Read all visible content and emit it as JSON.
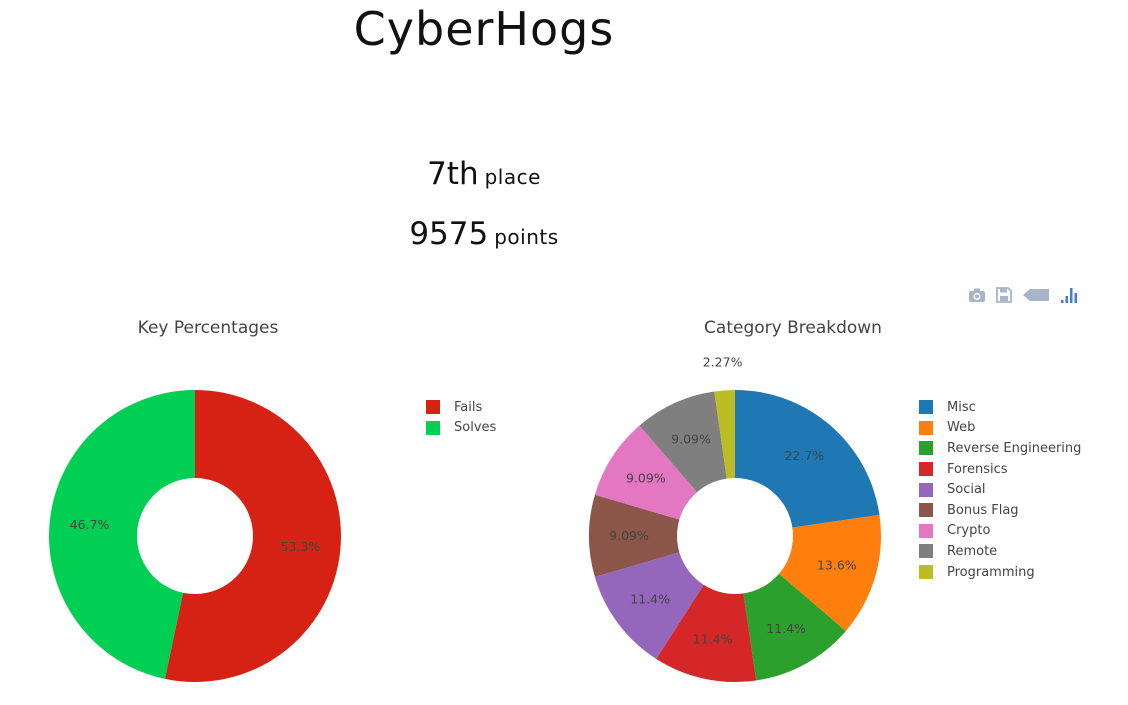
{
  "team": {
    "name": "CyberHogs"
  },
  "stats": {
    "place_value": "7th",
    "place_label": "place",
    "points_value": "9575",
    "points_label": "points"
  },
  "modebar": {
    "icons": [
      "camera-icon",
      "save-icon",
      "tag-icon",
      "plotly-logo-icon"
    ],
    "colors": {
      "icon": "#a8b4c8",
      "logo": "#447adb"
    }
  },
  "chart_data": [
    {
      "type": "pie",
      "title": "Key Percentages",
      "hole": true,
      "legend_position": "right",
      "labels": [
        "Fails",
        "Solves"
      ],
      "values": [
        53.3,
        46.7
      ],
      "text_labels": [
        "53.3%",
        "46.7%"
      ],
      "colors": [
        "#d62214",
        "#00cf54"
      ]
    },
    {
      "type": "pie",
      "title": "Category Breakdown",
      "hole": true,
      "legend_position": "right",
      "labels": [
        "Misc",
        "Web",
        "Reverse Engineering",
        "Forensics",
        "Social",
        "Bonus Flag",
        "Crypto",
        "Remote",
        "Programming"
      ],
      "values": [
        22.7,
        13.6,
        11.4,
        11.4,
        11.4,
        9.09,
        9.09,
        9.09,
        2.27
      ],
      "text_labels": [
        "22.7%",
        "13.6%",
        "11.4%",
        "11.4%",
        "11.4%",
        "9.09%",
        "9.09%",
        "9.09%",
        "2.27%"
      ],
      "colors": [
        "#1f77b4",
        "#ff7f0e",
        "#2ca02c",
        "#d62728",
        "#9467bd",
        "#8c564b",
        "#e377c2",
        "#7f7f7f",
        "#bcbd22"
      ]
    }
  ]
}
